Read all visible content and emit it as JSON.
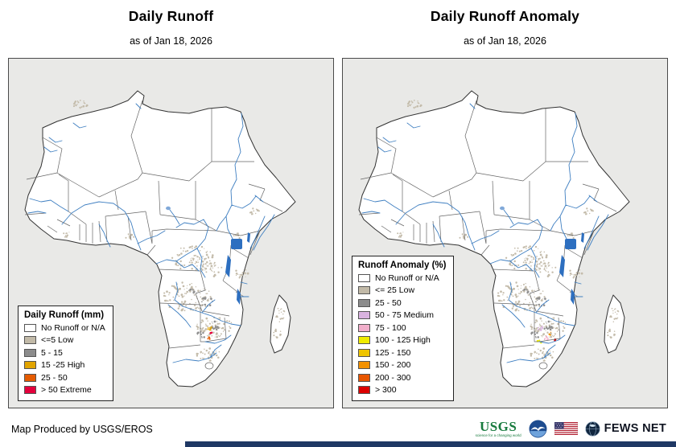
{
  "page": {
    "background": "#FFFFFF",
    "accent_bar_color": "#1F3864"
  },
  "panels": [
    {
      "title": "Daily Runoff",
      "subtitle": "as of Jan 18, 2026",
      "legend": {
        "title": "Daily Runoff (mm)",
        "items": [
          {
            "label": "No Runoff or N/A",
            "color": "#FFFFFF"
          },
          {
            "label": "<=5 Low",
            "color": "#C2BAA8"
          },
          {
            "label": "5 - 15",
            "color": "#8C8C8C"
          },
          {
            "label": "15 -25 High",
            "color": "#E2A400"
          },
          {
            "label": "25 - 50",
            "color": "#E55B00"
          },
          {
            "label": "> 50 Extreme",
            "color": "#E4003C"
          }
        ]
      }
    },
    {
      "title": "Daily Runoff Anomaly",
      "subtitle": "as of Jan 18, 2026",
      "legend": {
        "title": "Runoff Anomaly (%)",
        "items": [
          {
            "label": "No Runoff or N/A",
            "color": "#FFFFFF"
          },
          {
            "label": "<= 25 Low",
            "color": "#C2BAA8"
          },
          {
            "label": "25 - 50",
            "color": "#8C8C8C"
          },
          {
            "label": "50 - 75 Medium",
            "color": "#D9B3E0"
          },
          {
            "label": "75 - 100",
            "color": "#F2AFCB"
          },
          {
            "label": "100 - 125 High",
            "color": "#F0EC00"
          },
          {
            "label": "125 - 150",
            "color": "#EFC500"
          },
          {
            "label": "150 - 200",
            "color": "#F39100"
          },
          {
            "label": "200 - 300",
            "color": "#E85600"
          },
          {
            "label": "> 300",
            "color": "#DB0000"
          }
        ]
      }
    }
  ],
  "map": {
    "colors": {
      "ocean": "#E9E9E7",
      "land": "#FFFFFF",
      "coast": "#333333",
      "border": "#666666",
      "river": "#3F7FC1",
      "lake": "#2D6FC0",
      "stipple": "#C4BCAB",
      "stipple_dark": "#8F8F8F"
    }
  },
  "footer": {
    "credit": "Map Produced by USGS/EROS",
    "logos": {
      "usgs": {
        "text": "USGS",
        "tagline": "science for a changing world"
      },
      "fewsnet": {
        "text": "FEWS NET"
      }
    }
  }
}
